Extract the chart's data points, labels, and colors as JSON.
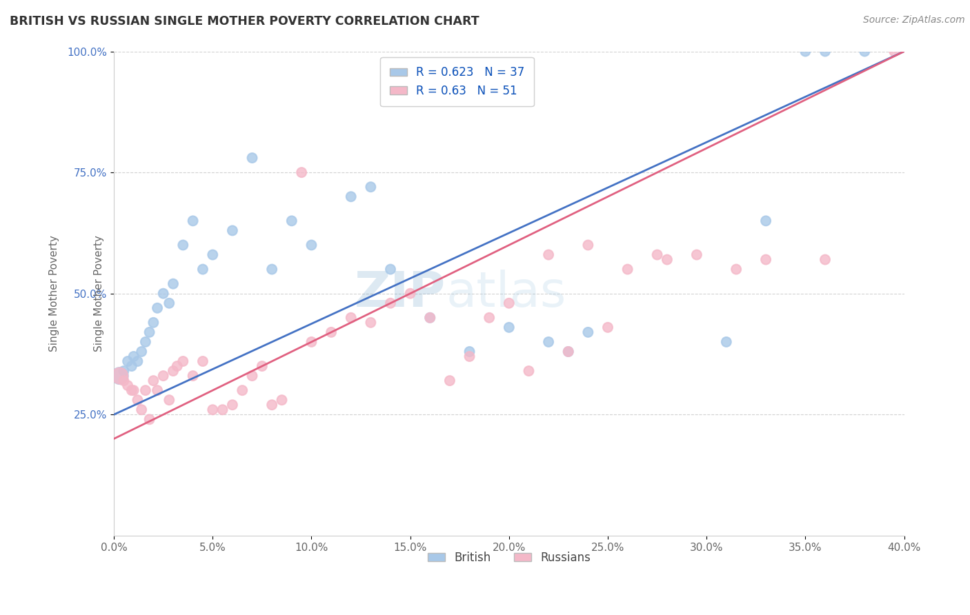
{
  "title": "BRITISH VS RUSSIAN SINGLE MOTHER POVERTY CORRELATION CHART",
  "source": "Source: ZipAtlas.com",
  "xlabel": "",
  "ylabel": "Single Mother Poverty",
  "xlim": [
    0.0,
    40.0
  ],
  "ylim": [
    0.0,
    100.0
  ],
  "x_ticks": [
    0.0,
    5.0,
    10.0,
    15.0,
    20.0,
    25.0,
    30.0,
    35.0,
    40.0
  ],
  "y_ticks": [
    25.0,
    50.0,
    75.0,
    100.0
  ],
  "british_color": "#a8c8e8",
  "russian_color": "#f4b8c8",
  "british_line_color": "#4472C4",
  "russian_line_color": "#e06080",
  "british_R": 0.623,
  "british_N": 37,
  "russian_R": 0.63,
  "russian_N": 51,
  "watermark_zip": "ZIP",
  "watermark_atlas": "atlas",
  "background_color": "#ffffff",
  "british_x": [
    0.3,
    0.5,
    0.7,
    0.9,
    1.0,
    1.2,
    1.4,
    1.6,
    1.8,
    2.0,
    2.2,
    2.5,
    2.8,
    3.0,
    3.5,
    4.0,
    4.5,
    5.0,
    6.0,
    7.0,
    8.0,
    9.0,
    10.0,
    12.0,
    13.0,
    14.0,
    16.0,
    18.0,
    20.0,
    22.0,
    23.0,
    24.0,
    31.0,
    33.0,
    35.0,
    36.0,
    38.0
  ],
  "british_y": [
    33.0,
    34.0,
    36.0,
    35.0,
    37.0,
    36.0,
    38.0,
    40.0,
    42.0,
    44.0,
    47.0,
    50.0,
    48.0,
    52.0,
    60.0,
    65.0,
    55.0,
    58.0,
    63.0,
    78.0,
    55.0,
    65.0,
    60.0,
    70.0,
    72.0,
    55.0,
    45.0,
    38.0,
    43.0,
    40.0,
    38.0,
    42.0,
    40.0,
    65.0,
    100.0,
    100.0,
    100.0
  ],
  "british_large_idx": [
    0
  ],
  "russian_x": [
    0.3,
    0.5,
    0.7,
    0.9,
    1.0,
    1.2,
    1.4,
    1.6,
    1.8,
    2.0,
    2.2,
    2.5,
    2.8,
    3.0,
    3.2,
    3.5,
    4.0,
    4.5,
    5.0,
    5.5,
    6.0,
    6.5,
    7.0,
    7.5,
    8.0,
    8.5,
    9.5,
    10.0,
    11.0,
    12.0,
    13.0,
    14.0,
    15.0,
    16.0,
    17.0,
    18.0,
    19.0,
    20.0,
    21.0,
    22.0,
    23.0,
    24.0,
    25.0,
    26.0,
    27.5,
    28.0,
    29.5,
    31.5,
    33.0,
    36.0,
    39.5
  ],
  "russian_y": [
    33.0,
    32.0,
    31.0,
    30.0,
    30.0,
    28.0,
    26.0,
    30.0,
    24.0,
    32.0,
    30.0,
    33.0,
    28.0,
    34.0,
    35.0,
    36.0,
    33.0,
    36.0,
    26.0,
    26.0,
    27.0,
    30.0,
    33.0,
    35.0,
    27.0,
    28.0,
    75.0,
    40.0,
    42.0,
    45.0,
    44.0,
    48.0,
    50.0,
    45.0,
    32.0,
    37.0,
    45.0,
    48.0,
    34.0,
    58.0,
    38.0,
    60.0,
    43.0,
    55.0,
    58.0,
    57.0,
    58.0,
    55.0,
    57.0,
    57.0,
    100.0
  ],
  "blue_line_x0": 0.0,
  "blue_line_y0": 25.0,
  "blue_line_x1": 40.0,
  "blue_line_y1": 100.0,
  "pink_line_x0": 0.0,
  "pink_line_y0": 20.0,
  "pink_line_x1": 40.0,
  "pink_line_y1": 100.0
}
